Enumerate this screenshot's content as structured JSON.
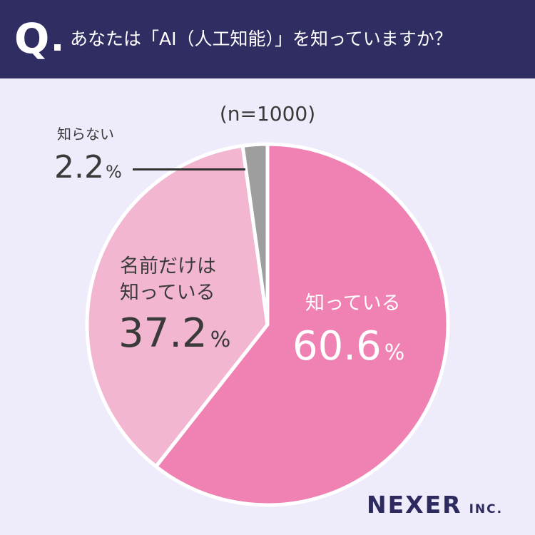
{
  "header": {
    "q_letter": "Q",
    "question": "あなたは「AI（人工知能）」を知っていますか？"
  },
  "sample_size": "(n=1000)",
  "chart_data": {
    "type": "pie",
    "title": "あなたは「AI（人工知能）」を知っていますか？",
    "slices": [
      {
        "label": "知っている",
        "value": 60.6,
        "display": "60.6",
        "color": "#ef82b2"
      },
      {
        "label": "名前だけは知っている",
        "value": 37.2,
        "display": "37.2",
        "color": "#f2b6d1"
      },
      {
        "label": "知らない",
        "value": 2.2,
        "display": "2.2",
        "color": "#9e9e9e"
      }
    ],
    "unit": "%",
    "start": "12 o'clock, clockwise",
    "separator_color": "#ffffff"
  },
  "labels": {
    "knows": {
      "name": "知っている",
      "pct": "60.6"
    },
    "name_only": {
      "line1": "名前だけは",
      "line2": "知っている",
      "pct": "37.2"
    },
    "unknown": {
      "name": "知らない",
      "pct": "2.2"
    },
    "unit": "%"
  },
  "brand": {
    "name": "NEXER",
    "suffix": "INC."
  }
}
